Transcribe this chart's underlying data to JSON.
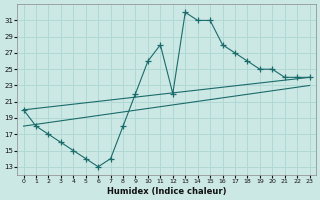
{
  "xlabel": "Humidex (Indice chaleur)",
  "bg_color": "#cce8e4",
  "grid_color": "#b0d8d4",
  "line_color": "#1a6b6b",
  "xlim": [
    -0.5,
    23.5
  ],
  "ylim": [
    12,
    33
  ],
  "xticks": [
    0,
    1,
    2,
    3,
    4,
    5,
    6,
    7,
    8,
    9,
    10,
    11,
    12,
    13,
    14,
    15,
    16,
    17,
    18,
    19,
    20,
    21,
    22,
    23
  ],
  "yticks": [
    13,
    15,
    17,
    19,
    21,
    23,
    25,
    27,
    29,
    31
  ],
  "series_main": {
    "x": [
      0,
      1,
      2,
      3,
      4,
      5,
      6,
      7,
      8,
      9,
      10,
      11,
      12,
      13,
      14,
      15,
      16,
      17,
      18,
      19,
      20,
      21,
      22,
      23
    ],
    "y": [
      20,
      18,
      17,
      16,
      15,
      14,
      13,
      14,
      18,
      22,
      26,
      28,
      22,
      32,
      31,
      31,
      28,
      27,
      26,
      25,
      25,
      24,
      24,
      24
    ]
  },
  "line1": {
    "x": [
      0,
      23
    ],
    "y": [
      20,
      24
    ]
  },
  "line2": {
    "x": [
      0,
      23
    ],
    "y": [
      18,
      23
    ]
  }
}
